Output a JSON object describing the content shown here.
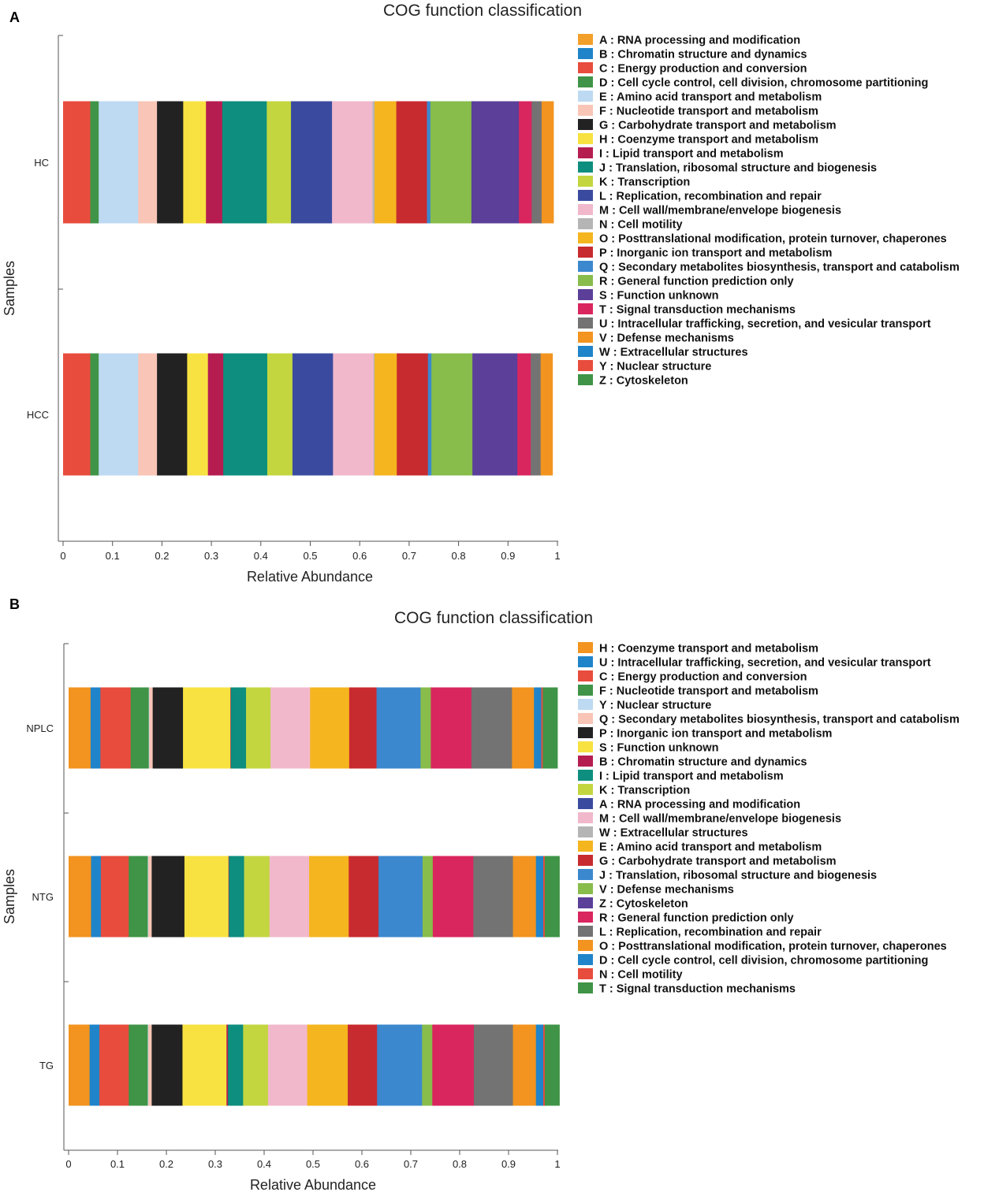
{
  "figure": {
    "panel_a_label": "A",
    "panel_b_label": "B"
  },
  "chart_data": [
    {
      "type": "bar",
      "orientation": "horizontal-stacked",
      "title": "COG function classification",
      "xlabel": "Relative Abundance",
      "ylabel": "Samples",
      "xlim": [
        0,
        1
      ],
      "xticks": [
        "0",
        "0.1",
        "0.2",
        "0.3",
        "0.4",
        "0.5",
        "0.6",
        "0.7",
        "0.8",
        "0.9",
        "1"
      ],
      "categories": [
        "HC",
        "HCC"
      ],
      "legend_position": "right",
      "series": [
        {
          "name": "C : Energy production and conversion",
          "color": "#e84c3d",
          "values": [
            0.055,
            0.055
          ]
        },
        {
          "name": "D : Cell cycle control, cell division, chromosome partitioning",
          "color": "#3f9447",
          "values": [
            0.017,
            0.017
          ]
        },
        {
          "name": "E : Amino acid transport and metabolism",
          "color": "#bddaf2",
          "values": [
            0.08,
            0.08
          ]
        },
        {
          "name": "F : Nucleotide transport and metabolism",
          "color": "#f8c5b6",
          "values": [
            0.038,
            0.038
          ]
        },
        {
          "name": "G : Carbohydrate transport and metabolism",
          "color": "#222222",
          "values": [
            0.053,
            0.061
          ]
        },
        {
          "name": "H : Coenzyme transport and metabolism",
          "color": "#f7e241",
          "values": [
            0.046,
            0.042
          ]
        },
        {
          "name": "I : Lipid transport and metabolism",
          "color": "#b51d51",
          "values": [
            0.033,
            0.031
          ]
        },
        {
          "name": "J : Translation, ribosomal structure and biogenesis",
          "color": "#0d8e7e",
          "values": [
            0.09,
            0.089
          ]
        },
        {
          "name": "K : Transcription",
          "color": "#c3d640",
          "values": [
            0.049,
            0.051
          ]
        },
        {
          "name": "L : Replication, recombination and repair",
          "color": "#3a4b9f",
          "values": [
            0.083,
            0.082
          ]
        },
        {
          "name": "M : Cell wall/membrane/envelope biogenesis",
          "color": "#f1b8cc",
          "values": [
            0.082,
            0.082
          ]
        },
        {
          "name": "N : Cell motility",
          "color": "#b5b5b5",
          "values": [
            0.004,
            0.002
          ]
        },
        {
          "name": "O : Posttranslational modification, protein turnover, chaperones",
          "color": "#f5b51f",
          "values": [
            0.044,
            0.045
          ]
        },
        {
          "name": "P : Inorganic ion transport and metabolism",
          "color": "#c82b2f",
          "values": [
            0.062,
            0.063
          ]
        },
        {
          "name": "Q : Secondary metabolites biosynthesis, transport and catabolism",
          "color": "#3b88cf",
          "values": [
            0.007,
            0.007
          ]
        },
        {
          "name": "R : General function prediction only",
          "color": "#88bc4b",
          "values": [
            0.083,
            0.083
          ]
        },
        {
          "name": "S : Function unknown",
          "color": "#5b3f99",
          "values": [
            0.096,
            0.091
          ]
        },
        {
          "name": "T : Signal transduction mechanisms",
          "color": "#d9265f",
          "values": [
            0.026,
            0.027
          ]
        },
        {
          "name": "U : Intracellular trafficking, secretion, and vesicular transport",
          "color": "#737373",
          "values": [
            0.02,
            0.02
          ]
        },
        {
          "name": "V : Defense mechanisms",
          "color": "#f2941f",
          "values": [
            0.024,
            0.024
          ]
        }
      ],
      "legend": [
        {
          "label": "A : RNA processing and modification",
          "color": "#f2a02a"
        },
        {
          "label": "B : Chromatin structure and dynamics",
          "color": "#1f84c9"
        },
        {
          "label": "C : Energy production and conversion",
          "color": "#e84c3d"
        },
        {
          "label": "D : Cell cycle control, cell division, chromosome partitioning",
          "color": "#3f9447"
        },
        {
          "label": "E : Amino acid transport and metabolism",
          "color": "#bddaf2"
        },
        {
          "label": "F : Nucleotide transport and metabolism",
          "color": "#f8c5b6"
        },
        {
          "label": "G : Carbohydrate transport and metabolism",
          "color": "#222222"
        },
        {
          "label": "H : Coenzyme transport and metabolism",
          "color": "#f7e241"
        },
        {
          "label": "I : Lipid transport and metabolism",
          "color": "#b51d51"
        },
        {
          "label": "J : Translation, ribosomal structure and biogenesis",
          "color": "#0d8e7e"
        },
        {
          "label": "K : Transcription",
          "color": "#c3d640"
        },
        {
          "label": "L : Replication, recombination and repair",
          "color": "#3a4b9f"
        },
        {
          "label": "M : Cell wall/membrane/envelope biogenesis",
          "color": "#f1b8cc"
        },
        {
          "label": "N : Cell motility",
          "color": "#b5b5b5"
        },
        {
          "label": "O : Posttranslational modification, protein turnover, chaperones",
          "color": "#f5b51f"
        },
        {
          "label": "P : Inorganic ion transport and metabolism",
          "color": "#c82b2f"
        },
        {
          "label": "Q : Secondary metabolites biosynthesis, transport and catabolism",
          "color": "#3b88cf"
        },
        {
          "label": "R : General function prediction only",
          "color": "#88bc4b"
        },
        {
          "label": "S : Function unknown",
          "color": "#5b3f99"
        },
        {
          "label": "T : Signal transduction mechanisms",
          "color": "#d9265f"
        },
        {
          "label": "U : Intracellular trafficking, secretion, and vesicular transport",
          "color": "#737373"
        },
        {
          "label": "V : Defense mechanisms",
          "color": "#f2941f"
        },
        {
          "label": "W : Extracellular structures",
          "color": "#1f84c9"
        },
        {
          "label": "Y : Nuclear structure",
          "color": "#e84c3d"
        },
        {
          "label": "Z : Cytoskeleton",
          "color": "#3f9447"
        }
      ]
    },
    {
      "type": "bar",
      "orientation": "horizontal-stacked",
      "title": "COG function classification",
      "xlabel": "Relative Abundance",
      "ylabel": "Samples",
      "xlim": [
        0,
        1
      ],
      "xticks": [
        "0",
        "0.1",
        "0.2",
        "0.3",
        "0.4",
        "0.5",
        "0.6",
        "0.7",
        "0.8",
        "0.9",
        "1"
      ],
      "categories": [
        "NPLC",
        "NTG",
        "TG"
      ],
      "legend_position": "right",
      "series": [
        {
          "name": "H : Coenzyme transport and metabolism",
          "color": "#f2941f",
          "values": [
            0.045,
            0.046,
            0.043
          ]
        },
        {
          "name": "U : Intracellular trafficking, secretion, and vesicular transport",
          "color": "#1f84c9",
          "values": [
            0.02,
            0.02,
            0.02
          ]
        },
        {
          "name": "C : Energy production and conversion",
          "color": "#e84c3d",
          "values": [
            0.062,
            0.057,
            0.06
          ]
        },
        {
          "name": "F : Nucleotide transport and metabolism",
          "color": "#3f9447",
          "values": [
            0.037,
            0.039,
            0.039
          ]
        },
        {
          "name": "Y : Nuclear structure",
          "color": "#bddaf2",
          "values": [
            0.001,
            0.001,
            0.001
          ]
        },
        {
          "name": "Q : Secondary metabolites biosynthesis, transport and catabolism",
          "color": "#f8c5b6",
          "values": [
            0.007,
            0.007,
            0.007
          ]
        },
        {
          "name": "P : Inorganic ion transport and metabolism",
          "color": "#222222",
          "values": [
            0.062,
            0.067,
            0.063
          ]
        },
        {
          "name": "S : Function unknown",
          "color": "#f7e241",
          "values": [
            0.097,
            0.09,
            0.09
          ]
        },
        {
          "name": "B : Chromatin structure and dynamics",
          "color": "#b51d51",
          "values": [
            0.001,
            0.001,
            0.003
          ]
        },
        {
          "name": "I : Lipid transport and metabolism",
          "color": "#0d8e7e",
          "values": [
            0.031,
            0.031,
            0.031
          ]
        },
        {
          "name": "K : Transcription",
          "color": "#c3d640",
          "values": [
            0.05,
            0.052,
            0.051
          ]
        },
        {
          "name": "A : RNA processing and modification",
          "color": "#3a4b9f",
          "values": [
            0.0,
            0.0,
            0.0
          ]
        },
        {
          "name": "M : Cell wall/membrane/envelope biogenesis",
          "color": "#f1b8cc",
          "values": [
            0.081,
            0.081,
            0.08
          ]
        },
        {
          "name": "W : Extracellular structures",
          "color": "#b5b5b5",
          "values": [
            0.0,
            0.0,
            0.0
          ]
        },
        {
          "name": "E : Amino acid transport and metabolism",
          "color": "#f5b51f",
          "values": [
            0.08,
            0.081,
            0.083
          ]
        },
        {
          "name": "G : Carbohydrate transport and metabolism",
          "color": "#c82b2f",
          "values": [
            0.056,
            0.061,
            0.06
          ]
        },
        {
          "name": "J : Translation, ribosomal structure and biogenesis",
          "color": "#3b88cf",
          "values": [
            0.09,
            0.09,
            0.092
          ]
        },
        {
          "name": "V : Defense mechanisms",
          "color": "#88bc4b",
          "values": [
            0.021,
            0.021,
            0.021
          ]
        },
        {
          "name": "Z : Cytoskeleton",
          "color": "#5b3f99",
          "values": [
            0.0,
            0.0,
            0.0
          ]
        },
        {
          "name": "R : General function prediction only",
          "color": "#d9265f",
          "values": [
            0.083,
            0.083,
            0.085
          ]
        },
        {
          "name": "L : Replication, recombination and repair",
          "color": "#737373",
          "values": [
            0.083,
            0.081,
            0.08
          ]
        },
        {
          "name": "O : Posttranslational modification, protein turnover, chaperones",
          "color": "#f2941f",
          "values": [
            0.045,
            0.047,
            0.047
          ]
        },
        {
          "name": "D : Cell cycle control, cell division, chromosome partitioning",
          "color": "#1f84c9",
          "values": [
            0.015,
            0.015,
            0.015
          ]
        },
        {
          "name": "N : Cell motility",
          "color": "#e84c3d",
          "values": [
            0.003,
            0.003,
            0.003
          ]
        },
        {
          "name": "T : Signal transduction mechanisms",
          "color": "#3f9447",
          "values": [
            0.03,
            0.03,
            0.03
          ]
        }
      ],
      "legend": [
        {
          "label": "H : Coenzyme transport and metabolism",
          "color": "#f2941f"
        },
        {
          "label": "U : Intracellular trafficking, secretion, and vesicular transport",
          "color": "#1f84c9"
        },
        {
          "label": "C : Energy production and conversion",
          "color": "#e84c3d"
        },
        {
          "label": "F : Nucleotide transport and metabolism",
          "color": "#3f9447"
        },
        {
          "label": "Y : Nuclear structure",
          "color": "#bddaf2"
        },
        {
          "label": "Q : Secondary metabolites biosynthesis, transport and catabolism",
          "color": "#f8c5b6"
        },
        {
          "label": "P : Inorganic ion transport and metabolism",
          "color": "#222222"
        },
        {
          "label": "S : Function unknown",
          "color": "#f7e241"
        },
        {
          "label": "B : Chromatin structure and dynamics",
          "color": "#b51d51"
        },
        {
          "label": "I : Lipid transport and metabolism",
          "color": "#0d8e7e"
        },
        {
          "label": "K : Transcription",
          "color": "#c3d640"
        },
        {
          "label": "A : RNA processing and modification",
          "color": "#3a4b9f"
        },
        {
          "label": "M : Cell wall/membrane/envelope biogenesis",
          "color": "#f1b8cc"
        },
        {
          "label": "W : Extracellular structures",
          "color": "#b5b5b5"
        },
        {
          "label": "E : Amino acid transport and metabolism",
          "color": "#f5b51f"
        },
        {
          "label": "G : Carbohydrate transport and metabolism",
          "color": "#c82b2f"
        },
        {
          "label": "J : Translation, ribosomal structure and biogenesis",
          "color": "#3b88cf"
        },
        {
          "label": "V : Defense mechanisms",
          "color": "#88bc4b"
        },
        {
          "label": "Z : Cytoskeleton",
          "color": "#5b3f99"
        },
        {
          "label": "R : General function prediction only",
          "color": "#d9265f"
        },
        {
          "label": "L : Replication, recombination and repair",
          "color": "#737373"
        },
        {
          "label": "O : Posttranslational modification, protein turnover, chaperones",
          "color": "#f2941f"
        },
        {
          "label": "D : Cell cycle control, cell division, chromosome partitioning",
          "color": "#1f84c9"
        },
        {
          "label": "N : Cell motility",
          "color": "#e84c3d"
        },
        {
          "label": "T : Signal transduction mechanisms",
          "color": "#3f9447"
        }
      ]
    }
  ]
}
